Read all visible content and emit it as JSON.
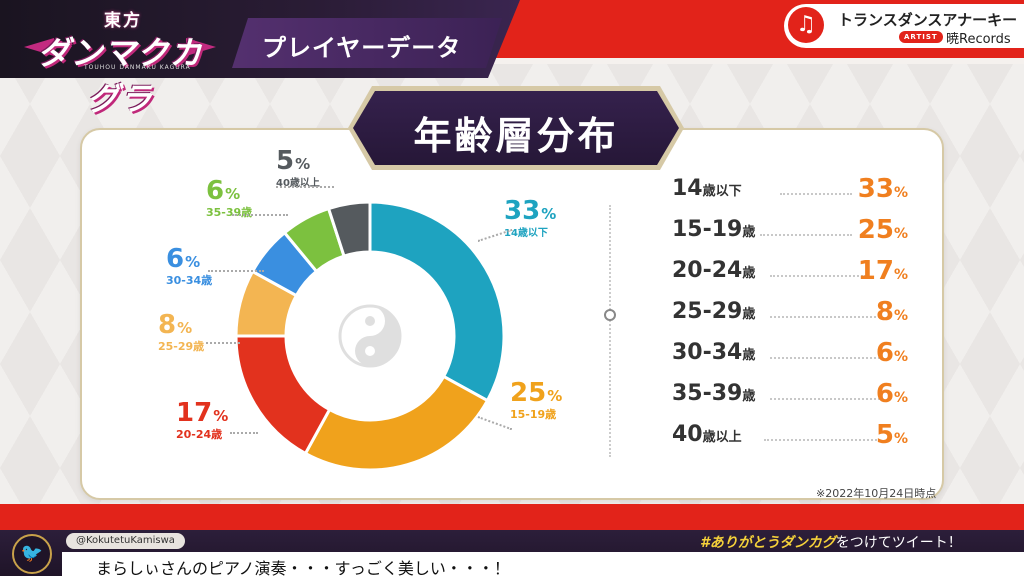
{
  "header": {
    "logo_top": "東方",
    "logo_main": "ダンマクカグラ",
    "logo_sub": "TOUHOU DANMAKU KAGURA",
    "page_title": "プレイヤーデータ"
  },
  "now_playing": {
    "icon": "music-note-icon",
    "title": "トランスダンスアナーキー",
    "artist_badge": "ARTIST",
    "artist": "暁Records"
  },
  "section": {
    "title": "年齢層分布"
  },
  "chart_data": {
    "type": "pie",
    "categories": [
      "14歳以下",
      "15-19歳",
      "20-24歳",
      "25-29歳",
      "30-34歳",
      "35-39歳",
      "40歳以上"
    ],
    "values": [
      33,
      25,
      17,
      8,
      6,
      6,
      5
    ],
    "unit": "%",
    "colors": [
      "#1ea3c0",
      "#f0a21c",
      "#e2321e",
      "#f3b552",
      "#3a8fe0",
      "#7cc13f",
      "#555a5e"
    ],
    "center_icon": "yin-yang-icon"
  },
  "table": {
    "rows": [
      {
        "cat_main": "14",
        "cat_unit": "歳以下",
        "value": "33",
        "unit": "%"
      },
      {
        "cat_main": "15-19",
        "cat_unit": "歳",
        "value": "25",
        "unit": "%"
      },
      {
        "cat_main": "20-24",
        "cat_unit": "歳",
        "value": "17",
        "unit": "%"
      },
      {
        "cat_main": "25-29",
        "cat_unit": "歳",
        "value": "8",
        "unit": "%"
      },
      {
        "cat_main": "30-34",
        "cat_unit": "歳",
        "value": "6",
        "unit": "%"
      },
      {
        "cat_main": "35-39",
        "cat_unit": "歳",
        "value": "6",
        "unit": "%"
      },
      {
        "cat_main": "40",
        "cat_unit": "歳以上",
        "value": "5",
        "unit": "%"
      }
    ]
  },
  "as_of": "※2022年10月24日時点",
  "footer": {
    "twitter_icon": "twitter-icon",
    "handle": "@KokutetuKamiswa",
    "hashtag": "#ありがとうダンカグ",
    "hashtag_suffix": "をつけてツイート！",
    "ticker": "まらしぃさんのピアノ演奏・・・すっごく美しい・・・！"
  }
}
